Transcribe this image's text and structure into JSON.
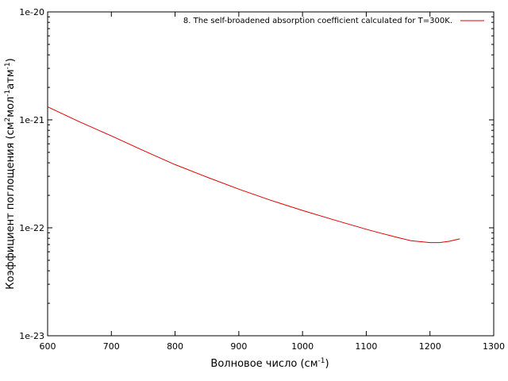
{
  "chart_data": {
    "type": "line",
    "xlabel": {
      "base": "Волновое число (см",
      "sup": "-1",
      "end": ")"
    },
    "ylabel": {
      "p1": "Коэффициент поглощения (см",
      "s1": "2",
      "p2": "мол",
      "s2": "-1",
      "p3": "атм",
      "s3": "-1",
      "p4": ")"
    },
    "xlim": [
      600,
      1300
    ],
    "ylim": [
      1e-23,
      1e-20
    ],
    "yscale": "log",
    "grid": false,
    "legend_position": "top-right",
    "x_ticks": [
      {
        "value": 600,
        "label": "600"
      },
      {
        "value": 700,
        "label": "700"
      },
      {
        "value": 800,
        "label": "800"
      },
      {
        "value": 900,
        "label": "900"
      },
      {
        "value": 1000,
        "label": "1000"
      },
      {
        "value": 1100,
        "label": "1100"
      },
      {
        "value": 1200,
        "label": "1200"
      },
      {
        "value": 1300,
        "label": "1300"
      }
    ],
    "y_ticks": [
      {
        "value": 1e-20,
        "label": "1e-20"
      },
      {
        "value": 1e-21,
        "label": "1e-21"
      },
      {
        "value": 1e-22,
        "label": "1e-22"
      },
      {
        "value": 1e-23,
        "label": "1e-23"
      }
    ],
    "series": [
      {
        "name": "8. The self-broadened absorption coefficient calculated for T=300K.",
        "color": "#dd0000",
        "points": [
          [
            600,
            1.32e-21
          ],
          [
            650,
            9.6e-22
          ],
          [
            700,
            7.1e-22
          ],
          [
            750,
            5.2e-22
          ],
          [
            800,
            3.85e-22
          ],
          [
            850,
            2.95e-22
          ],
          [
            900,
            2.28e-22
          ],
          [
            950,
            1.8e-22
          ],
          [
            1000,
            1.45e-22
          ],
          [
            1050,
            1.18e-22
          ],
          [
            1100,
            9.7e-23
          ],
          [
            1120,
            9e-23
          ],
          [
            1150,
            8.1e-23
          ],
          [
            1170,
            7.6e-23
          ],
          [
            1200,
            7.3e-23
          ],
          [
            1215,
            7.3e-23
          ],
          [
            1230,
            7.5e-23
          ],
          [
            1247,
            7.9e-23
          ]
        ]
      }
    ]
  }
}
